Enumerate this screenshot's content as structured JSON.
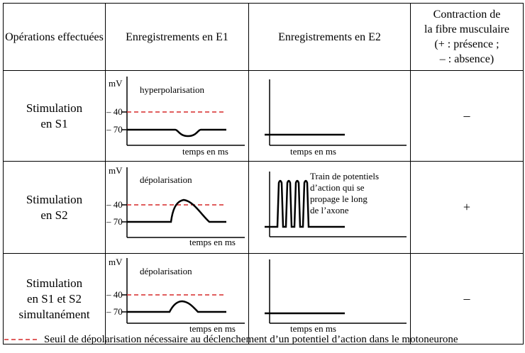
{
  "headers": {
    "operations": "Opérations effectuées",
    "e1": "Enregistrements en E1",
    "e2": "Enregistrements en E2",
    "contraction_line1": "Contraction de",
    "contraction_line2": "la fibre musculaire",
    "contraction_line3": "(+ : présence ;",
    "contraction_line4": "– : absence)"
  },
  "axis": {
    "mv": "mV",
    "v40": "– 40",
    "v70": "– 70",
    "time": "temps en ms"
  },
  "rows": [
    {
      "label_line1": "Stimulation",
      "label_line2": "en S1",
      "label_line3": "",
      "e1_label": "hyperpolarisation",
      "e2_note": [],
      "contraction": "–"
    },
    {
      "label_line1": "Stimulation",
      "label_line2": "en S2",
      "label_line3": "",
      "e1_label": "dépolarisation",
      "e2_note": [
        "Train de potentiels",
        "d’action qui se",
        "propage le long",
        "de l’axone"
      ],
      "contraction": "+"
    },
    {
      "label_line1": "Stimulation",
      "label_line2": "en S1 et S2",
      "label_line3": "simultanément",
      "e1_label": "dépolarisation",
      "e2_note": [],
      "contraction": "–"
    }
  ],
  "legend": "Seuil de dépolarisation nécessaire au déclenchement d’un potentiel d’action dans le motoneurone",
  "colors": {
    "threshold": "#d62828",
    "trace": "#000000"
  }
}
